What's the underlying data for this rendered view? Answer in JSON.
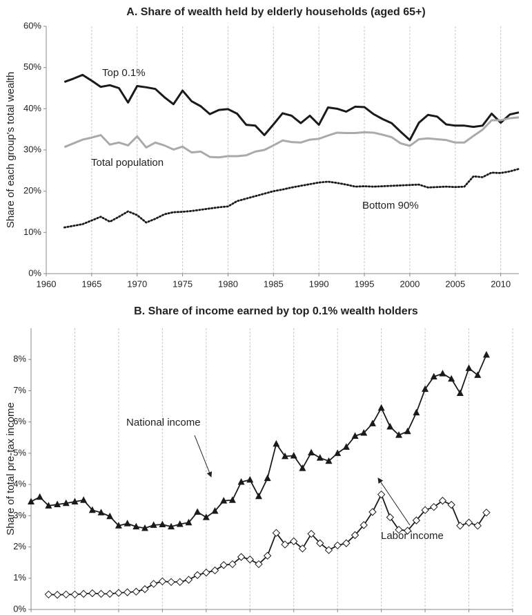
{
  "chart_data": [
    {
      "type": "line",
      "title": "A. Share of wealth held by elderly households (aged 65+)",
      "y_label": "Share of each group's total wealth",
      "x": [
        1962,
        1963,
        1964,
        1965,
        1966,
        1967,
        1968,
        1969,
        1970,
        1971,
        1972,
        1973,
        1974,
        1975,
        1976,
        1977,
        1978,
        1979,
        1980,
        1981,
        1982,
        1983,
        1984,
        1985,
        1986,
        1987,
        1988,
        1989,
        1990,
        1991,
        1992,
        1993,
        1994,
        1995,
        1996,
        1997,
        1998,
        1999,
        2000,
        2001,
        2002,
        2003,
        2004,
        2005,
        2006,
        2007,
        2008,
        2009,
        2010,
        2011,
        2012
      ],
      "series": [
        {
          "name": "Top 0.1%",
          "color": "#1a1a1a",
          "dash": "solid",
          "values": [
            46.5,
            47.3,
            48.2,
            46.8,
            45.3,
            45.7,
            45.0,
            41.5,
            45.5,
            45.2,
            44.8,
            42.8,
            41.1,
            44.4,
            41.8,
            40.6,
            38.7,
            39.7,
            39.9,
            38.8,
            36.1,
            35.9,
            33.6,
            36.2,
            38.9,
            38.3,
            36.5,
            38.3,
            36.1,
            40.3,
            40.0,
            39.3,
            40.5,
            40.4,
            38.7,
            37.5,
            36.5,
            34.4,
            32.4,
            36.6,
            38.5,
            38.1,
            36.2,
            35.9,
            35.9,
            35.6,
            35.9,
            38.8,
            36.6,
            38.6,
            39.1
          ]
        },
        {
          "name": "Total population",
          "color": "#aaaaaa",
          "dash": "solid",
          "values": [
            30.7,
            31.6,
            32.5,
            33.0,
            33.6,
            31.3,
            31.8,
            31.1,
            33.3,
            30.6,
            31.8,
            31.1,
            30.1,
            30.8,
            29.4,
            29.6,
            28.3,
            28.2,
            28.5,
            28.5,
            28.7,
            29.6,
            30.0,
            31.1,
            32.3,
            31.9,
            31.8,
            32.5,
            32.7,
            33.5,
            34.2,
            34.1,
            34.1,
            34.3,
            34.2,
            33.7,
            33.1,
            31.6,
            31.0,
            32.6,
            32.8,
            32.6,
            32.4,
            31.8,
            31.8,
            33.4,
            34.9,
            37.2,
            37.2,
            37.7,
            37.9
          ]
        },
        {
          "name": "Bottom 90%",
          "color": "#1a1a1a",
          "dash": "dotted",
          "values": [
            11.2,
            11.6,
            12.0,
            12.9,
            13.8,
            12.6,
            13.8,
            15.1,
            14.2,
            12.4,
            13.3,
            14.4,
            14.9,
            15.0,
            15.2,
            15.5,
            15.8,
            16.1,
            16.3,
            17.6,
            18.2,
            18.8,
            19.4,
            20.0,
            20.4,
            20.9,
            21.3,
            21.7,
            22.1,
            22.3,
            22.0,
            21.6,
            21.1,
            21.2,
            21.1,
            21.2,
            21.3,
            21.4,
            21.5,
            21.6,
            20.9,
            21.0,
            21.1,
            21.0,
            21.1,
            23.6,
            23.4,
            24.5,
            24.4,
            24.8,
            25.4
          ]
        }
      ],
      "xlim": [
        1960,
        2012
      ],
      "xticks": [
        1960,
        1965,
        1970,
        1975,
        1980,
        1985,
        1990,
        1995,
        2000,
        2005,
        2010
      ],
      "ylim": [
        0,
        60
      ],
      "yticks": [
        {
          "value": 0,
          "label": "0%"
        },
        {
          "value": 10,
          "label": "10%"
        },
        {
          "value": 20,
          "label": "20%"
        },
        {
          "value": 30,
          "label": "30%"
        },
        {
          "value": 40,
          "label": "40%"
        },
        {
          "value": 50,
          "label": "50%"
        },
        {
          "value": 60,
          "label": "60%"
        }
      ],
      "grid": "x"
    },
    {
      "type": "line",
      "title": "B. Share of income earned by top 0.1% wealth holders",
      "y_label": "Share of total pre-tax income",
      "x": [
        1960,
        1961,
        1962,
        1963,
        1964,
        1965,
        1966,
        1967,
        1968,
        1969,
        1970,
        1971,
        1972,
        1973,
        1974,
        1975,
        1976,
        1977,
        1978,
        1979,
        1980,
        1981,
        1982,
        1983,
        1984,
        1985,
        1986,
        1987,
        1988,
        1989,
        1990,
        1991,
        1992,
        1993,
        1994,
        1995,
        1996,
        1997,
        1998,
        1999,
        2000,
        2001,
        2002,
        2003,
        2004,
        2005,
        2006,
        2007,
        2008,
        2009,
        2010,
        2011,
        2012
      ],
      "series": [
        {
          "name": "National income",
          "color": "#1a1a1a",
          "marker": "triangle",
          "values": [
            3.45,
            3.6,
            3.32,
            3.36,
            3.4,
            3.45,
            3.5,
            3.18,
            3.1,
            2.98,
            2.68,
            2.75,
            2.65,
            2.6,
            2.7,
            2.72,
            2.65,
            2.73,
            2.78,
            3.12,
            2.95,
            3.15,
            3.48,
            3.5,
            4.08,
            4.15,
            3.62,
            4.2,
            5.3,
            4.9,
            4.92,
            4.52,
            5.02,
            4.85,
            4.75,
            5.0,
            5.2,
            5.55,
            5.65,
            5.95,
            6.45,
            5.85,
            5.58,
            5.7,
            6.3,
            7.05,
            7.45,
            7.55,
            7.38,
            6.92,
            7.72,
            7.5,
            8.15
          ]
        },
        {
          "name": "Labor income",
          "color": "#1a1a1a",
          "marker": "diamond",
          "values": [
            null,
            null,
            0.48,
            0.47,
            0.48,
            0.48,
            0.5,
            0.52,
            0.5,
            0.5,
            0.53,
            0.55,
            0.57,
            0.65,
            0.82,
            0.9,
            0.88,
            0.88,
            0.95,
            1.1,
            1.18,
            1.25,
            1.42,
            1.45,
            1.68,
            1.6,
            1.45,
            1.72,
            2.45,
            2.08,
            2.18,
            1.95,
            2.42,
            2.12,
            1.9,
            2.05,
            2.12,
            2.38,
            2.7,
            3.12,
            3.68,
            2.95,
            2.55,
            2.52,
            2.85,
            3.18,
            3.28,
            3.48,
            3.35,
            2.68,
            2.78,
            2.68,
            3.1
          ]
        }
      ],
      "xlim": [
        1960,
        2015
      ],
      "xticks": [
        1960,
        1965,
        1970,
        1975,
        1980,
        1985,
        1990,
        1995,
        2000,
        2005,
        2010,
        2015
      ],
      "ylim": [
        0,
        9
      ],
      "yticks": [
        {
          "value": 0,
          "label": "0%"
        },
        {
          "value": 1,
          "label": "1%"
        },
        {
          "value": 2,
          "label": "2%"
        },
        {
          "value": 3,
          "label": "3%"
        },
        {
          "value": 4,
          "label": "4%"
        },
        {
          "value": 5,
          "label": "5%"
        },
        {
          "value": 6,
          "label": "6%"
        },
        {
          "value": 7,
          "label": "7%"
        },
        {
          "value": 8,
          "label": "8%"
        }
      ],
      "grid": "x"
    }
  ]
}
